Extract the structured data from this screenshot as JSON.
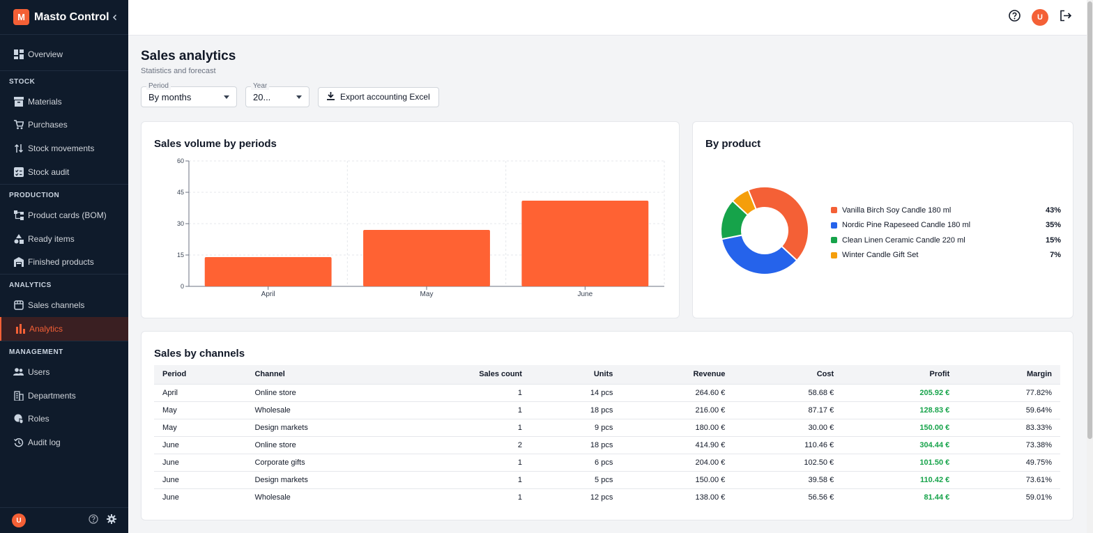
{
  "app": {
    "logo_letter": "M",
    "name": "Masto Control"
  },
  "sidebar": {
    "overview": "Overview",
    "stock_section": "STOCK",
    "stock_items": [
      "Materials",
      "Purchases",
      "Stock movements",
      "Stock audit"
    ],
    "production_section": "PRODUCTION",
    "production_items": [
      "Product cards (BOM)",
      "Ready items",
      "Finished products"
    ],
    "analytics_section": "ANALYTICS",
    "analytics_items": [
      "Sales channels",
      "Analytics"
    ],
    "management_section": "MANAGEMENT",
    "management_items": [
      "Users",
      "Departments",
      "Roles",
      "Audit log"
    ],
    "user_initial": "U"
  },
  "topbar": {
    "user_initial": "U"
  },
  "page": {
    "title": "Sales analytics",
    "subtitle": "Statistics and forecast",
    "period_label": "Period",
    "period_value": "By months",
    "year_label": "Year",
    "year_value": "20...",
    "export_label": "Export accounting Excel"
  },
  "colors": {
    "accent": "#f46036",
    "sidebar_bg": "#0f1b2b",
    "profit": "#16a34a"
  },
  "chart_data": [
    {
      "type": "bar",
      "title": "Sales volume by periods",
      "categories": [
        "April",
        "May",
        "June"
      ],
      "values": [
        14,
        27,
        41
      ],
      "ylim": [
        0,
        60
      ],
      "yticks": [
        0,
        15,
        30,
        45,
        60
      ],
      "grid": true,
      "color": "#ff6233"
    },
    {
      "type": "pie",
      "title": "By product",
      "labels": [
        "Vanilla Birch Soy Candle 180 ml",
        "Nordic Pine Rapeseed Candle 180 ml",
        "Clean Linen Ceramic Candle 220 ml",
        "Winter Candle Gift Set"
      ],
      "values": [
        43,
        35,
        15,
        7
      ],
      "display": [
        "43%",
        "35%",
        "15%",
        "7%"
      ],
      "colors": [
        "#f46036",
        "#2563eb",
        "#16a34a",
        "#f59e0b"
      ],
      "legend": "right"
    }
  ],
  "table": {
    "title": "Sales by channels",
    "columns": [
      "Period",
      "Channel",
      "Sales count",
      "Units",
      "Revenue",
      "Cost",
      "Profit",
      "Margin"
    ],
    "rows": [
      [
        "April",
        "Online store",
        "1",
        "14 pcs",
        "264.60 €",
        "58.68 €",
        "205.92 €",
        "77.82%"
      ],
      [
        "May",
        "Wholesale",
        "1",
        "18 pcs",
        "216.00 €",
        "87.17 €",
        "128.83 €",
        "59.64%"
      ],
      [
        "May",
        "Design markets",
        "1",
        "9 pcs",
        "180.00 €",
        "30.00 €",
        "150.00 €",
        "83.33%"
      ],
      [
        "June",
        "Online store",
        "2",
        "18 pcs",
        "414.90 €",
        "110.46 €",
        "304.44 €",
        "73.38%"
      ],
      [
        "June",
        "Corporate gifts",
        "1",
        "6 pcs",
        "204.00 €",
        "102.50 €",
        "101.50 €",
        "49.75%"
      ],
      [
        "June",
        "Design markets",
        "1",
        "5 pcs",
        "150.00 €",
        "39.58 €",
        "110.42 €",
        "73.61%"
      ],
      [
        "June",
        "Wholesale",
        "1",
        "12 pcs",
        "138.00 €",
        "56.56 €",
        "81.44 €",
        "59.01%"
      ]
    ]
  }
}
